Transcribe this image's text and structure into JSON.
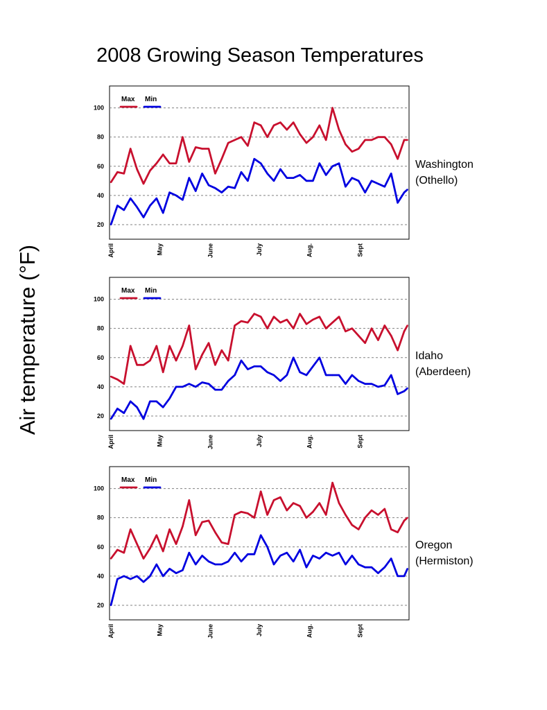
{
  "title": "2008 Growing Season Temperatures",
  "ylabel": "Air temperature (°F)",
  "colors": {
    "max": "#c8102e",
    "min": "#0000e0",
    "grid": "#808080"
  },
  "chart_data": [
    {
      "type": "line",
      "panel_label": [
        "Washington",
        "(Othello)"
      ],
      "year": 2008,
      "x": [
        "04-01",
        "04-05",
        "04-09",
        "04-13",
        "04-17",
        "04-21",
        "04-25",
        "04-29",
        "05-03",
        "05-07",
        "05-11",
        "05-15",
        "05-19",
        "05-23",
        "05-27",
        "05-31",
        "06-04",
        "06-08",
        "06-12",
        "06-16",
        "06-20",
        "06-24",
        "06-28",
        "07-02",
        "07-06",
        "07-10",
        "07-14",
        "07-18",
        "07-22",
        "07-26",
        "07-30",
        "08-03",
        "08-07",
        "08-11",
        "08-15",
        "08-19",
        "08-23",
        "08-27",
        "08-31",
        "09-04",
        "09-08",
        "09-12",
        "09-16",
        "09-20",
        "09-24",
        "09-28",
        "09-30"
      ],
      "series": [
        {
          "name": "Max",
          "values": [
            49,
            56,
            55,
            72,
            58,
            48,
            57,
            62,
            68,
            62,
            62,
            80,
            63,
            73,
            72,
            72,
            55,
            65,
            76,
            78,
            80,
            74,
            90,
            88,
            80,
            88,
            90,
            85,
            90,
            82,
            76,
            80,
            88,
            78,
            100,
            85,
            75,
            70,
            72,
            78,
            78,
            80,
            80,
            75,
            65,
            78,
            78
          ]
        },
        {
          "name": "Min",
          "values": [
            20,
            33,
            30,
            38,
            32,
            25,
            33,
            38,
            28,
            42,
            40,
            37,
            52,
            43,
            55,
            47,
            45,
            42,
            46,
            45,
            56,
            50,
            65,
            62,
            55,
            50,
            58,
            52,
            52,
            54,
            50,
            50,
            62,
            54,
            60,
            62,
            46,
            52,
            50,
            42,
            50,
            48,
            46,
            55,
            35,
            42,
            44
          ]
        }
      ],
      "x_ticks": [
        "April",
        "May",
        "June",
        "July",
        "Aug.",
        "Sept"
      ],
      "y_ticks": [
        100,
        80,
        60,
        40,
        20
      ],
      "ylim": [
        10,
        115
      ],
      "xlim": [
        "04-01",
        "09-30"
      ],
      "grid": "horizontal dashed",
      "legend": "top-left"
    },
    {
      "type": "line",
      "panel_label": [
        "Idaho",
        "(Aberdeen)"
      ],
      "year": 2008,
      "x": [
        "04-01",
        "04-05",
        "04-09",
        "04-13",
        "04-17",
        "04-21",
        "04-25",
        "04-29",
        "05-03",
        "05-07",
        "05-11",
        "05-15",
        "05-19",
        "05-23",
        "05-27",
        "05-31",
        "06-04",
        "06-08",
        "06-12",
        "06-16",
        "06-20",
        "06-24",
        "06-28",
        "07-02",
        "07-06",
        "07-10",
        "07-14",
        "07-18",
        "07-22",
        "07-26",
        "07-30",
        "08-03",
        "08-07",
        "08-11",
        "08-15",
        "08-19",
        "08-23",
        "08-27",
        "08-31",
        "09-04",
        "09-08",
        "09-12",
        "09-16",
        "09-20",
        "09-24",
        "09-28",
        "09-30"
      ],
      "series": [
        {
          "name": "Max",
          "values": [
            47,
            45,
            42,
            68,
            55,
            55,
            58,
            68,
            50,
            68,
            58,
            68,
            82,
            52,
            62,
            70,
            55,
            65,
            58,
            82,
            85,
            84,
            90,
            88,
            80,
            88,
            84,
            86,
            80,
            90,
            83,
            86,
            88,
            80,
            84,
            88,
            78,
            80,
            75,
            70,
            80,
            72,
            82,
            75,
            65,
            78,
            82
          ]
        },
        {
          "name": "Min",
          "values": [
            18,
            25,
            22,
            30,
            26,
            18,
            30,
            30,
            26,
            32,
            40,
            40,
            42,
            40,
            43,
            42,
            38,
            38,
            44,
            48,
            58,
            52,
            54,
            54,
            50,
            48,
            44,
            48,
            60,
            50,
            48,
            54,
            60,
            48,
            48,
            48,
            42,
            48,
            44,
            42,
            42,
            40,
            41,
            48,
            35,
            37,
            39
          ]
        }
      ],
      "x_ticks": [
        "April",
        "May",
        "June",
        "July",
        "Aug.",
        "Sept"
      ],
      "y_ticks": [
        100,
        80,
        60,
        40,
        20
      ],
      "ylim": [
        10,
        115
      ],
      "xlim": [
        "04-01",
        "09-30"
      ],
      "grid": "horizontal dashed",
      "legend": "top-left"
    },
    {
      "type": "line",
      "panel_label": [
        "Oregon",
        "(Hermiston)"
      ],
      "year": 2008,
      "x": [
        "04-01",
        "04-05",
        "04-09",
        "04-13",
        "04-17",
        "04-21",
        "04-25",
        "04-29",
        "05-03",
        "05-07",
        "05-11",
        "05-15",
        "05-19",
        "05-23",
        "05-27",
        "05-31",
        "06-04",
        "06-08",
        "06-12",
        "06-16",
        "06-20",
        "06-24",
        "06-28",
        "07-02",
        "07-06",
        "07-10",
        "07-14",
        "07-18",
        "07-22",
        "07-26",
        "07-30",
        "08-03",
        "08-07",
        "08-11",
        "08-15",
        "08-19",
        "08-23",
        "08-27",
        "08-31",
        "09-04",
        "09-08",
        "09-12",
        "09-16",
        "09-20",
        "09-24",
        "09-28",
        "09-30"
      ],
      "series": [
        {
          "name": "Max",
          "values": [
            52,
            58,
            56,
            72,
            62,
            52,
            59,
            68,
            57,
            72,
            62,
            74,
            92,
            68,
            77,
            78,
            70,
            63,
            62,
            82,
            84,
            83,
            80,
            98,
            82,
            92,
            94,
            85,
            90,
            88,
            80,
            84,
            90,
            82,
            104,
            90,
            82,
            75,
            72,
            80,
            85,
            82,
            86,
            72,
            70,
            78,
            80
          ]
        },
        {
          "name": "Min",
          "values": [
            20,
            38,
            40,
            38,
            40,
            36,
            40,
            48,
            40,
            45,
            42,
            44,
            56,
            48,
            54,
            50,
            48,
            48,
            50,
            56,
            50,
            55,
            55,
            68,
            60,
            48,
            54,
            56,
            50,
            58,
            46,
            54,
            52,
            56,
            54,
            56,
            48,
            54,
            48,
            46,
            46,
            42,
            46,
            52,
            40,
            40,
            45
          ]
        }
      ],
      "x_ticks": [
        "April",
        "May",
        "June",
        "July",
        "Aug.",
        "Sept"
      ],
      "y_ticks": [
        100,
        80,
        60,
        40,
        20
      ],
      "ylim": [
        10,
        115
      ],
      "xlim": [
        "04-01",
        "09-30"
      ],
      "grid": "horizontal dashed",
      "legend": "top-left"
    }
  ]
}
